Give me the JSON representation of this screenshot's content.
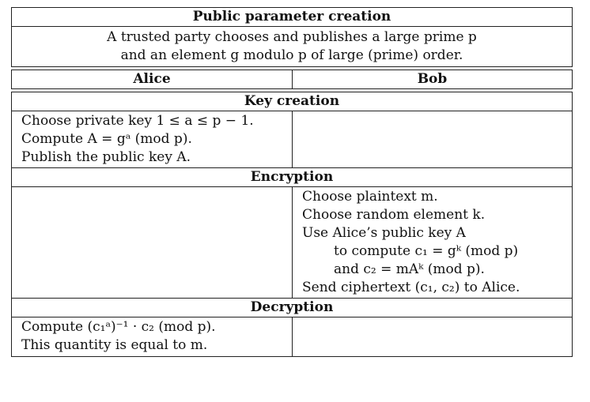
{
  "public": {
    "title": "Public parameter creation",
    "line1": "A trusted party chooses and publishes a large prime p",
    "line2": "and an element g modulo p of large (prime) order."
  },
  "columns": {
    "alice": "Alice",
    "bob": "Bob"
  },
  "key_creation": {
    "title": "Key creation",
    "alice": [
      "Choose private key 1 ≤ a ≤ p − 1.",
      "Compute A = gᵃ (mod p).",
      "Publish the public key A."
    ]
  },
  "encryption": {
    "title": "Encryption",
    "bob": [
      "Choose plaintext m.",
      "Choose random element k.",
      "Use Alice’s public key A",
      "to compute c₁ = gᵏ (mod p)",
      "and c₂ = mAᵏ (mod p).",
      "Send ciphertext (c₁, c₂) to Alice."
    ]
  },
  "decryption": {
    "title": "Decryption",
    "alice": [
      "Compute (c₁ᵃ)⁻¹ · c₂ (mod p).",
      "This quantity is equal to m."
    ]
  }
}
